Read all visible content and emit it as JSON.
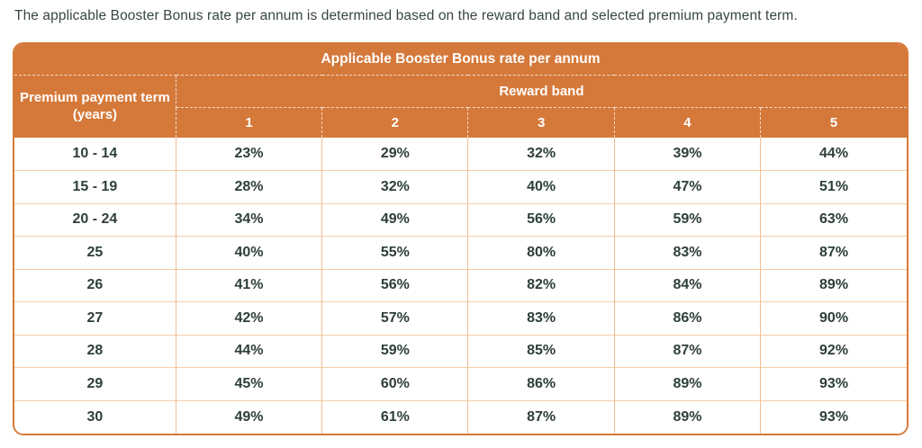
{
  "intro": "The applicable Booster Bonus rate per annum is determined based on the reward band and selected premium payment term.",
  "table": {
    "title": "Applicable Booster Bonus rate per annum",
    "corner_header": "Premium payment term (years)",
    "group_header": "Reward band",
    "band_columns": [
      "1",
      "2",
      "3",
      "4",
      "5"
    ],
    "rows": [
      {
        "term": "10 - 14",
        "values": [
          "23%",
          "29%",
          "32%",
          "39%",
          "44%"
        ]
      },
      {
        "term": "15 - 19",
        "values": [
          "28%",
          "32%",
          "40%",
          "47%",
          "51%"
        ]
      },
      {
        "term": "20 - 24",
        "values": [
          "34%",
          "49%",
          "56%",
          "59%",
          "63%"
        ]
      },
      {
        "term": "25",
        "values": [
          "40%",
          "55%",
          "80%",
          "83%",
          "87%"
        ]
      },
      {
        "term": "26",
        "values": [
          "41%",
          "56%",
          "82%",
          "84%",
          "89%"
        ]
      },
      {
        "term": "27",
        "values": [
          "42%",
          "57%",
          "83%",
          "86%",
          "90%"
        ]
      },
      {
        "term": "28",
        "values": [
          "44%",
          "59%",
          "85%",
          "87%",
          "92%"
        ]
      },
      {
        "term": "29",
        "values": [
          "45%",
          "60%",
          "86%",
          "89%",
          "93%"
        ]
      },
      {
        "term": "30",
        "values": [
          "49%",
          "61%",
          "87%",
          "89%",
          "93%"
        ]
      }
    ],
    "colors": {
      "header_bg": "#d5793a",
      "header_text": "#ffffff",
      "outer_border": "#d6793a",
      "grid_line_horizontal": "#f6cda6",
      "grid_line_vertical": "#f1bd92",
      "body_text": "#2e3f38",
      "intro_text": "#37463f"
    }
  }
}
